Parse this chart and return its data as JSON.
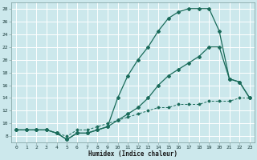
{
  "xlabel": "Humidex (Indice chaleur)",
  "bg_color": "#cce8ec",
  "grid_color": "#ffffff",
  "line_color": "#1a6b5a",
  "xlim": [
    -0.5,
    23.5
  ],
  "ylim": [
    7,
    29
  ],
  "yticks": [
    8,
    10,
    12,
    14,
    16,
    18,
    20,
    22,
    24,
    26,
    28
  ],
  "xticks": [
    0,
    1,
    2,
    3,
    4,
    5,
    6,
    7,
    8,
    9,
    10,
    11,
    12,
    13,
    14,
    15,
    16,
    17,
    18,
    19,
    20,
    21,
    22,
    23
  ],
  "series1_x": [
    0,
    1,
    2,
    3,
    4,
    5,
    6,
    7,
    8,
    9,
    10,
    11,
    12,
    13,
    14,
    15,
    16,
    17,
    18,
    19,
    20,
    21,
    22,
    23
  ],
  "series1_y": [
    9,
    9,
    9,
    9,
    8.5,
    7.5,
    8.5,
    8.5,
    9,
    9.5,
    14,
    17.5,
    20,
    22,
    24.5,
    26.5,
    27.5,
    28,
    28,
    28,
    24.5,
    17,
    16.5,
    14
  ],
  "series2_x": [
    0,
    1,
    2,
    3,
    4,
    5,
    6,
    7,
    8,
    9,
    10,
    11,
    12,
    13,
    14,
    15,
    16,
    17,
    18,
    19,
    20,
    21,
    22,
    23
  ],
  "series2_y": [
    9,
    9,
    9,
    9,
    8.5,
    7.5,
    8.5,
    8.5,
    9,
    9.5,
    10.5,
    11.5,
    12.5,
    14,
    16,
    17.5,
    18.5,
    19.5,
    20.5,
    22,
    22,
    17,
    16.5,
    14
  ],
  "series3_x": [
    0,
    1,
    2,
    3,
    4,
    5,
    6,
    7,
    8,
    9,
    10,
    11,
    12,
    13,
    14,
    15,
    16,
    17,
    18,
    19,
    20,
    21,
    22,
    23
  ],
  "series3_y": [
    9,
    9,
    9,
    9,
    8.5,
    8,
    9,
    9,
    9.5,
    10,
    10.5,
    11,
    11.5,
    12,
    12.5,
    12.5,
    13,
    13,
    13,
    13.5,
    13.5,
    13.5,
    14,
    14
  ]
}
